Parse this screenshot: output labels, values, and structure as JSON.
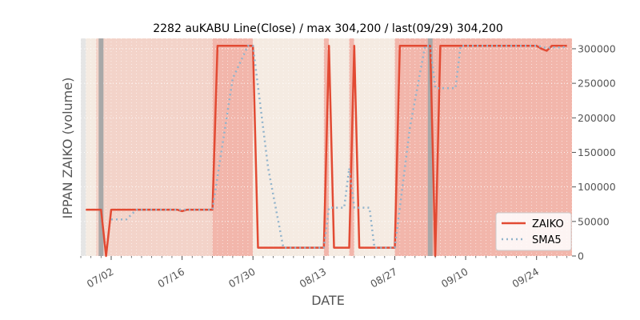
{
  "chart_data": {
    "type": "line",
    "title": "2282 auKABU Line(Close) / max 304,200 / last(09/29) 304,200",
    "xlabel": "DATE",
    "ylabel": "IPPAN ZAIKO (volume)",
    "ylim": [
      0,
      315000
    ],
    "xlim": [
      "2019-06-26",
      "2019-10-01"
    ],
    "x_ticks": [
      "2019-07-02",
      "2019-07-16",
      "2019-07-30",
      "2019-08-13",
      "2019-08-27",
      "2019-09-10",
      "2019-09-24"
    ],
    "x_tick_labels": [
      "07/02",
      "07/16",
      "07/30",
      "08/13",
      "08/27",
      "09/10",
      "09/24"
    ],
    "y_ticks": [
      0,
      50000,
      100000,
      150000,
      200000,
      250000,
      300000
    ],
    "y_tick_labels": [
      "0",
      "50000",
      "100000",
      "150000",
      "200000",
      "250000",
      "300000"
    ],
    "grid": true,
    "legend_position": "bottom-right",
    "colors": {
      "zaiko": "#e24a33",
      "sma5": "#92b4cc",
      "panel_bg": "#e5e5e5",
      "band_light": "#f5ebe2",
      "band_mid": "#f3d3c9",
      "band_strong": "#f2b6ab",
      "marker_gray": "#a8a8a8"
    },
    "shaded_regions": [
      {
        "start": "2019-06-27",
        "end": "2019-06-29",
        "level": "light"
      },
      {
        "start": "2019-06-29",
        "end": "2019-07-22",
        "level": "mid"
      },
      {
        "start": "2019-07-22",
        "end": "2019-07-30",
        "level": "strong"
      },
      {
        "start": "2019-07-30",
        "end": "2019-08-13",
        "level": "light"
      },
      {
        "start": "2019-08-13",
        "end": "2019-08-14",
        "level": "strong"
      },
      {
        "start": "2019-08-14",
        "end": "2019-08-18",
        "level": "light"
      },
      {
        "start": "2019-08-18",
        "end": "2019-08-19",
        "level": "strong"
      },
      {
        "start": "2019-08-19",
        "end": "2019-08-27",
        "level": "light"
      },
      {
        "start": "2019-08-27",
        "end": "2019-10-01",
        "level": "strong"
      }
    ],
    "markers": [
      "2019-06-30",
      "2019-09-03"
    ],
    "series": [
      {
        "name": "ZAIKO",
        "style": "solid",
        "points": [
          [
            "2019-06-27",
            67000
          ],
          [
            "2019-06-28",
            67000
          ],
          [
            "2019-06-29",
            67000
          ],
          [
            "2019-06-30",
            67000
          ],
          [
            "2019-07-01",
            0
          ],
          [
            "2019-07-02",
            67000
          ],
          [
            "2019-07-03",
            67000
          ],
          [
            "2019-07-04",
            67000
          ],
          [
            "2019-07-05",
            67000
          ],
          [
            "2019-07-08",
            67000
          ],
          [
            "2019-07-10",
            67000
          ],
          [
            "2019-07-12",
            67000
          ],
          [
            "2019-07-15",
            67000
          ],
          [
            "2019-07-16",
            65000
          ],
          [
            "2019-07-17",
            67000
          ],
          [
            "2019-07-18",
            67000
          ],
          [
            "2019-07-19",
            67000
          ],
          [
            "2019-07-22",
            67000
          ],
          [
            "2019-07-23",
            304200
          ],
          [
            "2019-07-24",
            304200
          ],
          [
            "2019-07-26",
            304200
          ],
          [
            "2019-07-29",
            304200
          ],
          [
            "2019-07-30",
            304200
          ],
          [
            "2019-07-31",
            12000
          ],
          [
            "2019-08-01",
            12000
          ],
          [
            "2019-08-05",
            12000
          ],
          [
            "2019-08-08",
            12000
          ],
          [
            "2019-08-12",
            12000
          ],
          [
            "2019-08-13",
            12000
          ],
          [
            "2019-08-14",
            304200
          ],
          [
            "2019-08-15",
            12000
          ],
          [
            "2019-08-16",
            12000
          ],
          [
            "2019-08-17",
            12000
          ],
          [
            "2019-08-18",
            12000
          ],
          [
            "2019-08-19",
            304200
          ],
          [
            "2019-08-20",
            12000
          ],
          [
            "2019-08-21",
            12000
          ],
          [
            "2019-08-23",
            12000
          ],
          [
            "2019-08-26",
            12000
          ],
          [
            "2019-08-27",
            12000
          ],
          [
            "2019-08-28",
            304200
          ],
          [
            "2019-08-29",
            304200
          ],
          [
            "2019-08-30",
            304200
          ],
          [
            "2019-09-02",
            304200
          ],
          [
            "2019-09-03",
            304200
          ],
          [
            "2019-09-04",
            0
          ],
          [
            "2019-09-05",
            304200
          ],
          [
            "2019-09-06",
            304200
          ],
          [
            "2019-09-09",
            304200
          ],
          [
            "2019-09-12",
            304200
          ],
          [
            "2019-09-16",
            304200
          ],
          [
            "2019-09-17",
            304200
          ],
          [
            "2019-09-18",
            304200
          ],
          [
            "2019-09-20",
            304200
          ],
          [
            "2019-09-23",
            304200
          ],
          [
            "2019-09-24",
            304200
          ],
          [
            "2019-09-25",
            300000
          ],
          [
            "2019-09-26",
            297000
          ],
          [
            "2019-09-27",
            304200
          ],
          [
            "2019-09-28",
            304200
          ],
          [
            "2019-09-29",
            304200
          ],
          [
            "2019-09-30",
            304200
          ]
        ]
      },
      {
        "name": "SMA5",
        "style": "dotted",
        "points": [
          [
            "2019-07-02",
            53000
          ],
          [
            "2019-07-03",
            53000
          ],
          [
            "2019-07-04",
            53000
          ],
          [
            "2019-07-05",
            53000
          ],
          [
            "2019-07-06",
            60000
          ],
          [
            "2019-07-07",
            67000
          ],
          [
            "2019-07-08",
            67000
          ],
          [
            "2019-07-12",
            67000
          ],
          [
            "2019-07-15",
            67000
          ],
          [
            "2019-07-16",
            67000
          ],
          [
            "2019-07-17",
            67000
          ],
          [
            "2019-07-19",
            67000
          ],
          [
            "2019-07-22",
            67000
          ],
          [
            "2019-07-23",
            115000
          ],
          [
            "2019-07-24",
            162000
          ],
          [
            "2019-07-25",
            210000
          ],
          [
            "2019-07-26",
            257000
          ],
          [
            "2019-07-29",
            304200
          ],
          [
            "2019-07-30",
            304200
          ],
          [
            "2019-07-31",
            245000
          ],
          [
            "2019-08-01",
            186000
          ],
          [
            "2019-08-02",
            127000
          ],
          [
            "2019-08-05",
            12000
          ],
          [
            "2019-08-08",
            12000
          ],
          [
            "2019-08-13",
            12000
          ],
          [
            "2019-08-14",
            70000
          ],
          [
            "2019-08-15",
            70000
          ],
          [
            "2019-08-16",
            70000
          ],
          [
            "2019-08-17",
            70000
          ],
          [
            "2019-08-18",
            127000
          ],
          [
            "2019-08-19",
            70000
          ],
          [
            "2019-08-20",
            70000
          ],
          [
            "2019-08-21",
            70000
          ],
          [
            "2019-08-22",
            70000
          ],
          [
            "2019-08-23",
            12000
          ],
          [
            "2019-08-26",
            12000
          ],
          [
            "2019-08-27",
            12000
          ],
          [
            "2019-08-28",
            70000
          ],
          [
            "2019-08-29",
            128000
          ],
          [
            "2019-08-30",
            186000
          ],
          [
            "2019-09-02",
            304200
          ],
          [
            "2019-09-03",
            304200
          ],
          [
            "2019-09-04",
            243000
          ],
          [
            "2019-09-05",
            243000
          ],
          [
            "2019-09-06",
            243000
          ],
          [
            "2019-09-07",
            243000
          ],
          [
            "2019-09-08",
            243000
          ],
          [
            "2019-09-09",
            304200
          ],
          [
            "2019-09-12",
            304200
          ],
          [
            "2019-09-16",
            304200
          ],
          [
            "2019-09-20",
            304200
          ],
          [
            "2019-09-24",
            304200
          ],
          [
            "2019-09-25",
            303000
          ],
          [
            "2019-09-26",
            301000
          ],
          [
            "2019-09-27",
            302000
          ],
          [
            "2019-09-28",
            302000
          ],
          [
            "2019-09-29",
            302000
          ],
          [
            "2019-09-30",
            303000
          ]
        ]
      }
    ]
  }
}
